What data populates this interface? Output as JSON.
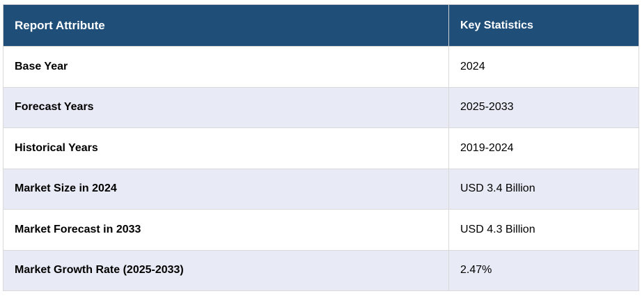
{
  "table": {
    "headers": [
      "Report Attribute",
      "Key Statistics"
    ],
    "rows": [
      {
        "attribute": "Base Year",
        "value": "2024"
      },
      {
        "attribute": "Forecast Years",
        "value": "2025-2033"
      },
      {
        "attribute": "Historical Years",
        "value": "2019-2024"
      },
      {
        "attribute": "Market Size in 2024",
        "value": "USD 3.4 Billion"
      },
      {
        "attribute": "Market Forecast in 2033",
        "value": "USD 4.3 Billion"
      },
      {
        "attribute": "Market Growth Rate (2025-2033)",
        "value": "2.47%"
      }
    ]
  },
  "colors": {
    "header_bg": "#1f4e79",
    "header_text": "#ffffff",
    "row_alt_bg": "#e8eaf5",
    "row_bg": "#ffffff"
  }
}
